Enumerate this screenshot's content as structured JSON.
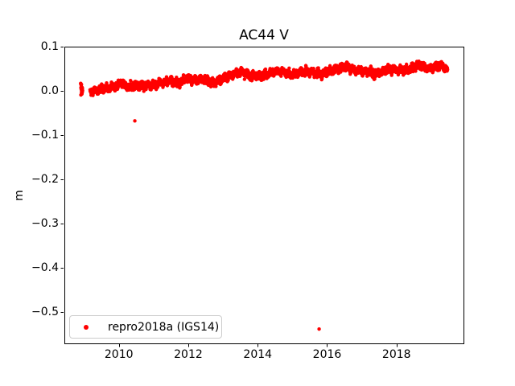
{
  "figure": {
    "title": "AC44 V",
    "background_color": "#ffffff",
    "axes_color": "#000000"
  },
  "chart_data": {
    "type": "scatter",
    "title": "AC44 V",
    "xlabel": "",
    "ylabel": "m",
    "xlim": [
      2008.43,
      2019.93
    ],
    "ylim": [
      -0.5715,
      0.1
    ],
    "grid": false,
    "x_ticks": {
      "values": [
        2010,
        2012,
        2014,
        2016,
        2018
      ],
      "labels": [
        "2010",
        "2012",
        "2014",
        "2016",
        "2018"
      ]
    },
    "y_ticks": {
      "values": [
        0.1,
        0.0,
        -0.1,
        -0.2,
        -0.3,
        -0.4,
        -0.5
      ],
      "labels": [
        "0.1",
        "0.0",
        "−0.1",
        "−0.2",
        "−0.3",
        "−0.4",
        "−0.5"
      ]
    },
    "legend": {
      "position": "lower left",
      "entries": [
        {
          "label": "repro2018a (IGS14)",
          "marker": "point",
          "color": "#ff0000"
        }
      ]
    },
    "series": [
      {
        "name": "repro2018a (IGS14)",
        "color": "#ff0000",
        "marker": "point",
        "marker_diameter_px": 4.4,
        "description": "dense near-daily vertical position time series rising from ~0.00 m in 2009 to ~0.05 m in 2019",
        "initial_cluster": {
          "x_start": 2008.9,
          "x_end": 2008.97,
          "y_min": -0.013,
          "y_max": 0.018,
          "points": 20
        },
        "band": {
          "t_start": 2009.17,
          "t_end": 2019.47,
          "points_per_year": 300,
          "scatter_halfwidth": 0.0095,
          "trend_anchors": [
            [
              2009.17,
              -0.002
            ],
            [
              2009.3,
              0.0
            ],
            [
              2009.45,
              0.004
            ],
            [
              2009.75,
              0.008
            ],
            [
              2009.95,
              0.01
            ],
            [
              2010.05,
              0.019
            ],
            [
              2010.25,
              0.01
            ],
            [
              2010.55,
              0.013
            ],
            [
              2010.85,
              0.012
            ],
            [
              2011.15,
              0.016
            ],
            [
              2011.45,
              0.022
            ],
            [
              2011.7,
              0.017
            ],
            [
              2011.95,
              0.028
            ],
            [
              2012.2,
              0.024
            ],
            [
              2012.45,
              0.026
            ],
            [
              2012.75,
              0.018
            ],
            [
              2013.05,
              0.03
            ],
            [
              2013.3,
              0.038
            ],
            [
              2013.55,
              0.043
            ],
            [
              2013.8,
              0.034
            ],
            [
              2014.1,
              0.034
            ],
            [
              2014.35,
              0.04
            ],
            [
              2014.6,
              0.045
            ],
            [
              2014.85,
              0.039
            ],
            [
              2015.05,
              0.036
            ],
            [
              2015.3,
              0.044
            ],
            [
              2015.55,
              0.044
            ],
            [
              2015.8,
              0.038
            ],
            [
              2016.0,
              0.043
            ],
            [
              2016.25,
              0.047
            ],
            [
              2016.5,
              0.056
            ],
            [
              2016.7,
              0.048
            ],
            [
              2016.95,
              0.045
            ],
            [
              2017.2,
              0.043
            ],
            [
              2017.4,
              0.038
            ],
            [
              2017.65,
              0.046
            ],
            [
              2017.9,
              0.049
            ],
            [
              2018.15,
              0.047
            ],
            [
              2018.4,
              0.05
            ],
            [
              2018.65,
              0.058
            ],
            [
              2018.9,
              0.051
            ],
            [
              2019.1,
              0.054
            ],
            [
              2019.3,
              0.058
            ],
            [
              2019.47,
              0.046
            ]
          ]
        },
        "outliers": [
          {
            "x": 2010.46,
            "y": -0.068
          },
          {
            "x": 2015.77,
            "y": -0.539
          }
        ]
      }
    ]
  }
}
